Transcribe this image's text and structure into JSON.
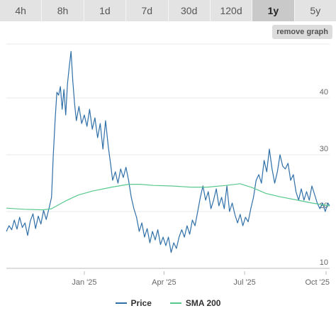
{
  "range_tabs": [
    {
      "label": "4h",
      "active": false
    },
    {
      "label": "8h",
      "active": false
    },
    {
      "label": "1d",
      "active": false
    },
    {
      "label": "7d",
      "active": false
    },
    {
      "label": "30d",
      "active": false
    },
    {
      "label": "120d",
      "active": false
    },
    {
      "label": "1y",
      "active": true
    },
    {
      "label": "5y",
      "active": false
    }
  ],
  "remove_graph_label": "remove graph",
  "colors": {
    "price_line": "#2f6fa8",
    "sma_line": "#58c98e",
    "grid": "#e8e8e8",
    "axis": "#bbbbbb"
  },
  "chart_data": {
    "type": "line",
    "x_axis": {
      "ticks": [
        {
          "date": "2025-01-01",
          "label": "Jan '25"
        },
        {
          "date": "2025-04-01",
          "label": "Apr '25"
        },
        {
          "date": "2025-07-01",
          "label": "Jul '25"
        },
        {
          "date": "2025-10-01",
          "label": "Oct '25"
        }
      ],
      "range": [
        "2024-10-05",
        "2025-10-05"
      ]
    },
    "y_axis": {
      "ticks": [
        10,
        20,
        30,
        40
      ],
      "range": [
        9.5,
        49.5
      ],
      "side": "right"
    },
    "grid": true,
    "legend_placement": "bottom",
    "series": [
      {
        "name": "Price",
        "points": [
          [
            "2024-10-05",
            16.5
          ],
          [
            "2024-10-08",
            17.5
          ],
          [
            "2024-10-11",
            16.8
          ],
          [
            "2024-10-14",
            18.5
          ],
          [
            "2024-10-17",
            16.9
          ],
          [
            "2024-10-20",
            19.0
          ],
          [
            "2024-10-23",
            17.2
          ],
          [
            "2024-10-26",
            18.0
          ],
          [
            "2024-10-29",
            15.8
          ],
          [
            "2024-11-01",
            18.3
          ],
          [
            "2024-11-04",
            19.6
          ],
          [
            "2024-11-07",
            17.0
          ],
          [
            "2024-11-10",
            19.2
          ],
          [
            "2024-11-13",
            17.8
          ],
          [
            "2024-11-16",
            20.2
          ],
          [
            "2024-11-19",
            18.6
          ],
          [
            "2024-11-22",
            20.5
          ],
          [
            "2024-11-25",
            22.5
          ],
          [
            "2024-11-27",
            30.0
          ],
          [
            "2024-11-29",
            36.0
          ],
          [
            "2024-12-01",
            41.0
          ],
          [
            "2024-12-03",
            40.5
          ],
          [
            "2024-12-05",
            42.0
          ],
          [
            "2024-12-07",
            38.0
          ],
          [
            "2024-12-09",
            41.5
          ],
          [
            "2024-12-11",
            37.0
          ],
          [
            "2024-12-13",
            42.5
          ],
          [
            "2024-12-15",
            45.5
          ],
          [
            "2024-12-17",
            48.2
          ],
          [
            "2024-12-19",
            43.0
          ],
          [
            "2024-12-21",
            39.0
          ],
          [
            "2024-12-23",
            36.0
          ],
          [
            "2024-12-26",
            38.5
          ],
          [
            "2024-12-29",
            35.5
          ],
          [
            "2025-01-01",
            37.0
          ],
          [
            "2025-01-04",
            35.0
          ],
          [
            "2025-01-07",
            38.0
          ],
          [
            "2025-01-10",
            34.5
          ],
          [
            "2025-01-13",
            36.5
          ],
          [
            "2025-01-16",
            33.0
          ],
          [
            "2025-01-19",
            35.5
          ],
          [
            "2025-01-22",
            31.0
          ],
          [
            "2025-01-25",
            36.0
          ],
          [
            "2025-01-28",
            31.5
          ],
          [
            "2025-01-31",
            28.0
          ],
          [
            "2025-02-02",
            25.5
          ],
          [
            "2025-02-05",
            27.0
          ],
          [
            "2025-02-08",
            25.0
          ],
          [
            "2025-02-11",
            27.5
          ],
          [
            "2025-02-14",
            26.0
          ],
          [
            "2025-02-17",
            27.8
          ],
          [
            "2025-02-20",
            25.5
          ],
          [
            "2025-02-23",
            22.5
          ],
          [
            "2025-02-26",
            20.5
          ],
          [
            "2025-03-01",
            19.0
          ],
          [
            "2025-03-04",
            16.5
          ],
          [
            "2025-03-07",
            18.0
          ],
          [
            "2025-03-10",
            15.5
          ],
          [
            "2025-03-13",
            17.0
          ],
          [
            "2025-03-16",
            14.5
          ],
          [
            "2025-03-19",
            16.5
          ],
          [
            "2025-03-22",
            15.0
          ],
          [
            "2025-03-25",
            16.8
          ],
          [
            "2025-03-28",
            14.2
          ],
          [
            "2025-03-31",
            15.5
          ],
          [
            "2025-04-03",
            14.0
          ],
          [
            "2025-04-06",
            15.5
          ],
          [
            "2025-04-09",
            12.8
          ],
          [
            "2025-04-12",
            14.5
          ],
          [
            "2025-04-15",
            13.5
          ],
          [
            "2025-04-18",
            15.5
          ],
          [
            "2025-04-21",
            16.8
          ],
          [
            "2025-04-24",
            15.5
          ],
          [
            "2025-04-27",
            17.5
          ],
          [
            "2025-04-30",
            16.0
          ],
          [
            "2025-05-03",
            18.5
          ],
          [
            "2025-05-06",
            17.5
          ],
          [
            "2025-05-09",
            20.0
          ],
          [
            "2025-05-12",
            22.5
          ],
          [
            "2025-05-15",
            24.5
          ],
          [
            "2025-05-18",
            22.0
          ],
          [
            "2025-05-21",
            23.5
          ],
          [
            "2025-05-24",
            20.5
          ],
          [
            "2025-05-27",
            22.0
          ],
          [
            "2025-05-30",
            24.0
          ],
          [
            "2025-06-02",
            21.0
          ],
          [
            "2025-06-05",
            22.5
          ],
          [
            "2025-06-08",
            20.5
          ],
          [
            "2025-06-11",
            24.5
          ],
          [
            "2025-06-14",
            20.0
          ],
          [
            "2025-06-17",
            21.5
          ],
          [
            "2025-06-20",
            19.5
          ],
          [
            "2025-06-23",
            18.0
          ],
          [
            "2025-06-26",
            19.5
          ],
          [
            "2025-06-29",
            17.5
          ],
          [
            "2025-07-02",
            19.0
          ],
          [
            "2025-07-05",
            18.2
          ],
          [
            "2025-07-08",
            20.5
          ],
          [
            "2025-07-11",
            22.5
          ],
          [
            "2025-07-14",
            25.5
          ],
          [
            "2025-07-17",
            26.5
          ],
          [
            "2025-07-20",
            25.0
          ],
          [
            "2025-07-23",
            29.0
          ],
          [
            "2025-07-26",
            27.0
          ],
          [
            "2025-07-29",
            31.0
          ],
          [
            "2025-08-01",
            27.5
          ],
          [
            "2025-08-04",
            25.0
          ],
          [
            "2025-08-07",
            27.0
          ],
          [
            "2025-08-10",
            30.0
          ],
          [
            "2025-08-13",
            28.0
          ],
          [
            "2025-08-16",
            27.5
          ],
          [
            "2025-08-19",
            28.5
          ],
          [
            "2025-08-22",
            25.5
          ],
          [
            "2025-08-25",
            26.5
          ],
          [
            "2025-08-28",
            23.5
          ],
          [
            "2025-08-31",
            22.0
          ],
          [
            "2025-09-03",
            24.0
          ],
          [
            "2025-09-06",
            22.0
          ],
          [
            "2025-09-09",
            23.5
          ],
          [
            "2025-09-12",
            22.0
          ],
          [
            "2025-09-15",
            24.5
          ],
          [
            "2025-09-18",
            23.0
          ],
          [
            "2025-09-21",
            21.5
          ],
          [
            "2025-09-24",
            20.5
          ],
          [
            "2025-09-27",
            21.5
          ],
          [
            "2025-09-30",
            20.0
          ],
          [
            "2025-10-03",
            21.5
          ],
          [
            "2025-10-05",
            21.0
          ]
        ]
      },
      {
        "name": "SMA 200",
        "points": [
          [
            "2024-10-05",
            20.6
          ],
          [
            "2024-10-25",
            20.4
          ],
          [
            "2024-11-15",
            20.3
          ],
          [
            "2024-11-25",
            20.5
          ],
          [
            "2024-12-10",
            21.8
          ],
          [
            "2024-12-25",
            22.9
          ],
          [
            "2025-01-10",
            23.6
          ],
          [
            "2025-02-01",
            24.3
          ],
          [
            "2025-02-20",
            24.8
          ],
          [
            "2025-03-05",
            24.8
          ],
          [
            "2025-03-20",
            24.6
          ],
          [
            "2025-04-10",
            24.5
          ],
          [
            "2025-05-01",
            24.3
          ],
          [
            "2025-05-20",
            24.3
          ],
          [
            "2025-06-10",
            24.6
          ],
          [
            "2025-06-26",
            24.9
          ],
          [
            "2025-07-10",
            24.2
          ],
          [
            "2025-07-25",
            23.2
          ],
          [
            "2025-08-10",
            22.6
          ],
          [
            "2025-08-30",
            22.0
          ],
          [
            "2025-09-15",
            21.5
          ],
          [
            "2025-10-05",
            21.0
          ]
        ]
      }
    ]
  }
}
